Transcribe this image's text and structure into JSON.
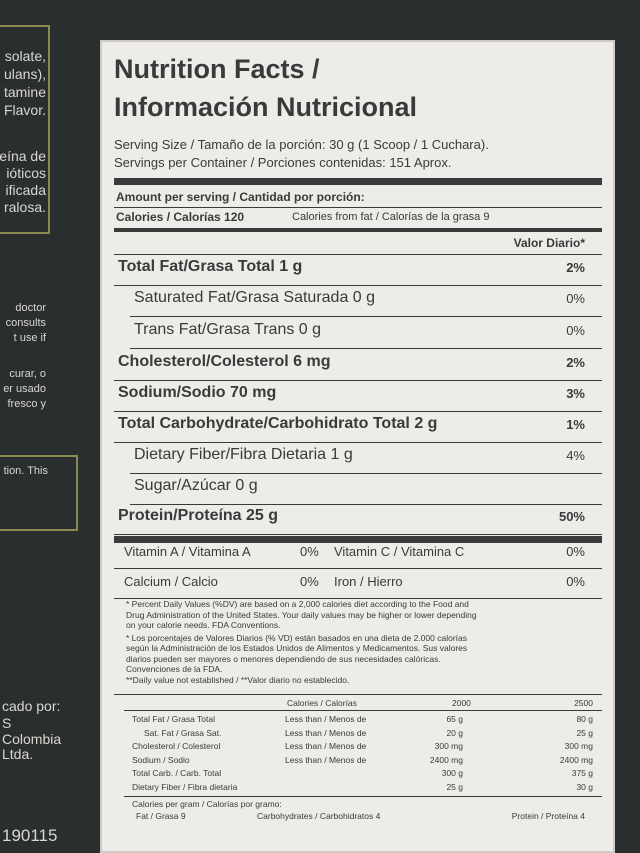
{
  "left_panel": {
    "lines": [
      "solate,",
      "ulans),",
      "tamine",
      "Flavor.",
      "eína de",
      "ióticos",
      "ificada",
      "ralosa.",
      "doctor",
      "consults",
      "t use if",
      "curar, o",
      "er usado",
      "fresco y",
      "tion. This",
      "cado por:",
      "S",
      "Colombia",
      "Ltda.",
      "190115"
    ]
  },
  "label": {
    "title": [
      "Nutrition Facts /",
      "Información Nutricional"
    ],
    "serving_size": "Serving Size / Tamaño de la porción: 30 g (1 Scoop / 1 Cuchara).",
    "servings": "Servings per Container / Porciones contenidas: 151 Aprox.",
    "amount_header": "Amount per serving / Cantidad por porción:",
    "calories": "Calories / Calorías 120",
    "calories_fat": "Calories from fat / Calorías de la grasa 9",
    "dv_header": "Valor Diario*",
    "nutrients": [
      {
        "label": "Total Fat/Grasa Total 1 g",
        "dv": "2%"
      },
      {
        "label": "Saturated Fat/Grasa Saturada 0 g",
        "dv": "0%"
      },
      {
        "label": "Trans Fat/Grasa Trans 0 g",
        "dv": "0%"
      },
      {
        "label": "Cholesterol/Colesterol 6 mg",
        "dv": "2%"
      },
      {
        "label": "Sodium/Sodio 70 mg",
        "dv": "3%"
      },
      {
        "label": "Total Carbohydrate/Carbohidrato Total 2 g",
        "dv": "1%"
      },
      {
        "label": "Dietary Fiber/Fibra Dietaria 1 g",
        "dv": "4%"
      },
      {
        "label": "Sugar/Azúcar 0 g"
      },
      {
        "label": "Protein/Proteína 25 g",
        "dv": "50%"
      }
    ],
    "vitamins": [
      [
        "Vitamin A / Vitamina A",
        "0%",
        "Vitamin C / Vitamina C",
        "0%"
      ],
      [
        "Calcium / Calcio",
        "0%",
        "Iron / Hierro",
        "0%"
      ]
    ],
    "footnotes": [
      "* Percent Daily Values (%DV) are based on a 2,000 calories diet according to the Food and",
      "Drug Administration of the United States. Your daily values may be higher or lower depending",
      "on your calorie needs. FDA Conventions.",
      "* Los porcentajes de Valores Diarios (% VD) están basados en una dieta de 2.000 calorías",
      "según la Administración de los Estados Unidos de Alimentos y Medicamentos. Sus valores",
      "diarios pueden ser mayores o menores dependiendo de sus necesidades calóricas.",
      "Convenciones de la FDA.",
      "**Daily value not established / **Valor diario no establecido."
    ],
    "table": {
      "header": [
        "Calories / Calorías",
        "2000",
        "2500"
      ],
      "rows": [
        [
          "Total Fat / Grasa Total",
          "Less than / Menos de",
          "65 g",
          "80 g"
        ],
        [
          "Sat. Fat / Grasa Sat.",
          "Less than / Menos de",
          "20 g",
          "25 g"
        ],
        [
          "Cholesterol / Colesterol",
          "Less than / Menos de",
          "300 mg",
          "300 mg"
        ],
        [
          "Sodium / Sodio",
          "Less than / Menos de",
          "2400 mg",
          "2400 mg"
        ],
        [
          "Total Carb. / Carb. Total",
          null,
          "300 g",
          "375 g"
        ],
        [
          "Dietary Fiber / Fibra dietaria",
          null,
          "25 g",
          "30 g"
        ]
      ]
    },
    "per_gram": [
      "Calories per gram / Calorías por gramo:",
      "Fat / Grasa 9",
      "Carbohydrates / Carbohidratos 4",
      "Protein / Proteína 4"
    ]
  }
}
